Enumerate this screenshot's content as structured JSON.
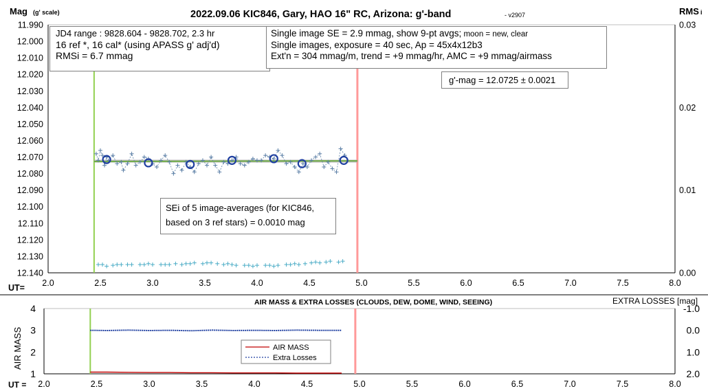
{
  "chart_data": [
    {
      "type": "scatter",
      "title": "2022.09.06 KIC846, Gary, HAO 16\" RC, Arizona: g'-band",
      "version": "- v2907",
      "ylabel": "Mag",
      "ylabel_sub": "(g' scale)",
      "y2label": "RMS",
      "y2label_sub": "i",
      "xlabel": "UT=",
      "xlim": [
        2.0,
        8.0
      ],
      "ylim": [
        11.99,
        12.14
      ],
      "y_inverted": true,
      "y2lim": [
        0.0,
        0.03
      ],
      "x_ticks": [
        "2.0",
        "2.5",
        "3.0",
        "3.5",
        "4.0",
        "4.5",
        "5.0",
        "5.5",
        "6.0",
        "6.5",
        "7.0",
        "7.5",
        "8.0"
      ],
      "y_ticks": [
        "11.990",
        "12.000",
        "12.010",
        "12.020",
        "12.030",
        "12.040",
        "12.050",
        "12.060",
        "12.070",
        "12.080",
        "12.090",
        "12.100",
        "12.110",
        "12.120",
        "12.130",
        "12.140"
      ],
      "y2_ticks": [
        "0.03",
        "0.02",
        "0.01",
        "0.00"
      ],
      "vertical_lines": [
        {
          "x": 2.44,
          "color": "#92d050"
        },
        {
          "x": 4.96,
          "color": "#ff9999"
        }
      ],
      "fit_line": {
        "x": [
          2.44,
          4.96
        ],
        "y": 12.0725,
        "color": "#a9a9a9"
      },
      "trend_line": {
        "x": [
          2.44,
          4.96
        ],
        "y": [
          12.0727,
          12.0723
        ],
        "color": "#70ad47"
      },
      "series": [
        {
          "name": "single images",
          "marker": "plus",
          "color": "#5b7fa6",
          "x": [
            2.46,
            2.48,
            2.5,
            2.52,
            2.54,
            2.56,
            2.58,
            2.62,
            2.66,
            2.7,
            2.72,
            2.76,
            2.8,
            2.84,
            2.88,
            2.92,
            2.96,
            3.0,
            3.04,
            3.08,
            3.12,
            3.16,
            3.2,
            3.24,
            3.28,
            3.32,
            3.36,
            3.4,
            3.44,
            3.48,
            3.52,
            3.56,
            3.6,
            3.64,
            3.68,
            3.72,
            3.76,
            3.8,
            3.84,
            3.88,
            3.92,
            3.96,
            4.0,
            4.04,
            4.08,
            4.12,
            4.16,
            4.2,
            4.24,
            4.28,
            4.32,
            4.36,
            4.4,
            4.44,
            4.48,
            4.52,
            4.56,
            4.6,
            4.64,
            4.68,
            4.72,
            4.76,
            4.8,
            4.84
          ],
          "y": [
            12.068,
            12.072,
            12.066,
            12.069,
            12.075,
            12.07,
            12.072,
            12.069,
            12.074,
            12.073,
            12.078,
            12.074,
            12.068,
            12.075,
            12.073,
            12.07,
            12.071,
            12.074,
            12.076,
            12.072,
            12.069,
            12.073,
            12.08,
            12.075,
            12.078,
            12.073,
            12.076,
            12.079,
            12.074,
            12.072,
            12.075,
            12.07,
            12.075,
            12.079,
            12.073,
            12.074,
            12.072,
            12.07,
            12.074,
            12.075,
            12.073,
            12.071,
            12.072,
            12.072,
            12.069,
            12.07,
            12.071,
            12.066,
            12.069,
            12.074,
            12.073,
            12.076,
            12.079,
            12.074,
            12.076,
            12.072,
            12.07,
            12.068,
            12.076,
            12.073,
            12.077,
            12.079,
            12.065,
            12.069
          ]
        },
        {
          "name": "9-pt avgs",
          "marker": "open-circle",
          "color": "#1f3fa0",
          "x": [
            2.56,
            2.96,
            3.36,
            3.76,
            4.16,
            4.43,
            4.83
          ],
          "y": [
            12.0715,
            12.0735,
            12.0745,
            12.072,
            12.071,
            12.074,
            12.072
          ]
        },
        {
          "name": "RMS",
          "marker": "plus",
          "axis": "y2",
          "color": "#4bacc6",
          "x": [
            2.48,
            2.52,
            2.56,
            2.62,
            2.66,
            2.7,
            2.76,
            2.8,
            2.88,
            2.92,
            2.96,
            3.0,
            3.08,
            3.12,
            3.16,
            3.22,
            3.28,
            3.32,
            3.36,
            3.4,
            3.48,
            3.52,
            3.56,
            3.62,
            3.68,
            3.72,
            3.76,
            3.8,
            3.88,
            3.92,
            3.96,
            4.0,
            4.08,
            4.12,
            4.16,
            4.2,
            4.28,
            4.32,
            4.36,
            4.4,
            4.46,
            4.52,
            4.56,
            4.6,
            4.66,
            4.7,
            4.78,
            4.82
          ],
          "y": [
            0.001,
            0.001,
            0.0008,
            0.0009,
            0.001,
            0.001,
            0.001,
            0.001,
            0.001,
            0.001,
            0.0011,
            0.001,
            0.001,
            0.001,
            0.001,
            0.0011,
            0.001,
            0.0011,
            0.0011,
            0.0012,
            0.0011,
            0.0012,
            0.0012,
            0.0011,
            0.001,
            0.0011,
            0.001,
            0.0009,
            0.0009,
            0.0009,
            0.0008,
            0.0009,
            0.0009,
            0.0009,
            0.0008,
            0.0009,
            0.001,
            0.001,
            0.0011,
            0.001,
            0.0011,
            0.0012,
            0.0013,
            0.0012,
            0.0013,
            0.0014,
            0.0013,
            0.0014
          ]
        }
      ]
    },
    {
      "type": "line",
      "title": "AIR MASS & EXTRA LOSSES (CLOUDS, DEW, DOME, WIND, SEEING)",
      "ylabel": "AIR MASS",
      "y2label": "EXTRA LOSSES [mag]",
      "xlabel": "UT =",
      "xlim": [
        2.0,
        8.0
      ],
      "ylim": [
        1,
        4
      ],
      "y2lim": [
        -1.0,
        2.0
      ],
      "y2_inverted": true,
      "x_ticks": [
        "2.0",
        "2.5",
        "3.0",
        "3.5",
        "4.0",
        "4.5",
        "5.0",
        "5.5",
        "6.0",
        "6.5",
        "7.0",
        "7.5",
        "8.0"
      ],
      "y_ticks": [
        "4",
        "3",
        "2",
        "1"
      ],
      "y2_ticks": [
        "-1.0",
        "0.0",
        "1.0",
        "2.0"
      ],
      "vertical_lines": [
        {
          "x": 2.44,
          "color": "#92d050"
        },
        {
          "x": 4.96,
          "color": "#ff9999"
        }
      ],
      "legend": {
        "placement": "center",
        "entries": [
          "AIR MASS",
          "Extra Losses"
        ]
      },
      "series": [
        {
          "name": "AIR MASS",
          "axis": "y",
          "color": "#c00000",
          "x": [
            2.44,
            2.6,
            2.8,
            3.0,
            3.2,
            3.4,
            3.6,
            3.8,
            4.0,
            4.2,
            4.4,
            4.6,
            4.83
          ],
          "y": [
            1.08,
            1.08,
            1.07,
            1.06,
            1.06,
            1.05,
            1.05,
            1.04,
            1.04,
            1.04,
            1.03,
            1.03,
            1.03
          ]
        },
        {
          "name": "Extra Losses",
          "axis": "y2",
          "color": "#1f3fa0",
          "x": [
            2.44,
            2.6,
            2.8,
            3.0,
            3.2,
            3.4,
            3.6,
            3.8,
            4.0,
            4.2,
            4.4,
            4.6,
            4.83
          ],
          "y": [
            0.0,
            0.01,
            -0.01,
            0.01,
            0.0,
            0.02,
            -0.01,
            0.01,
            0.0,
            0.01,
            -0.01,
            0.0,
            0.0
          ]
        }
      ]
    }
  ],
  "annotations": {
    "info_box": {
      "line1": "JD4 range : 9828.604 - 9828.702,  2.3 hr",
      "line2": "16 ref *, 16 cal* (using APASS g' adj'd)",
      "line3": "RMSi = 6.7 mmag"
    },
    "se_box": {
      "line1_main": "Single image SE = 2.9 mmag, show  9-pt avgs;",
      "line1_small": " moon = new, clear",
      "line2": "Single images, exposure = 40 sec, Ap = 45x4x12b3",
      "line3": "Ext'n = 304 mmag/m, trend = +9 mmag/hr, AMC = +9 mmag/airmass"
    },
    "gmag_box": "g'-mag = 12.0725 ± 0.0021",
    "sei_box": {
      "line1": "SEi of 5 image-averages (for KIC846,",
      "line2": "based on 3 ref stars) = 0.0010 mag"
    }
  }
}
